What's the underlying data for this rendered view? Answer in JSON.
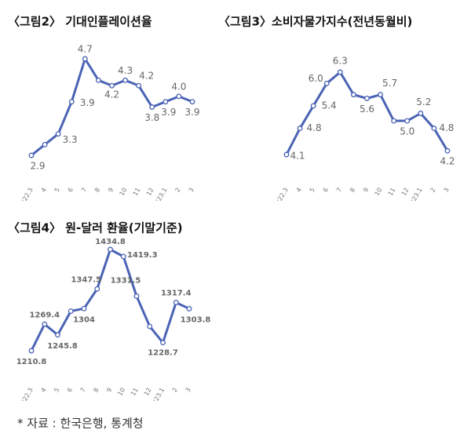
{
  "chart_data": [
    {
      "type": "line",
      "title": "〈그림2〉 기대인플레이션율",
      "categories": [
        "'22.3",
        "4",
        "5",
        "6",
        "7",
        "8",
        "9",
        "10",
        "11",
        "12",
        "'23.1",
        "2",
        "3"
      ],
      "values": [
        2.9,
        3.1,
        3.3,
        3.9,
        4.7,
        4.3,
        4.2,
        4.3,
        4.2,
        3.8,
        3.9,
        4.0,
        3.9
      ],
      "value_labels": [
        "2.9",
        null,
        "3.3",
        "3.9",
        "4.7",
        null,
        "4.2",
        "4.3",
        "4.2",
        "3.8",
        "3.9",
        "4.0",
        "3.9"
      ],
      "color": "#4a63b5"
    },
    {
      "type": "line",
      "title": "〈그림3〉소비자물가지수(전년동월비)",
      "categories": [
        "'22.3",
        "4",
        "5",
        "6",
        "7",
        "8",
        "9",
        "10",
        "11",
        "12",
        "'23.1",
        "2",
        "3"
      ],
      "values": [
        4.1,
        4.8,
        5.4,
        6.0,
        6.3,
        5.7,
        5.6,
        5.7,
        5.0,
        5.0,
        5.2,
        4.8,
        4.2
      ],
      "value_labels": [
        "4.1",
        "4.8",
        "5.4",
        "6.0",
        "6.3",
        null,
        "5.6",
        "5.7",
        null,
        "5.0",
        "5.2",
        "4.8",
        "4.2"
      ],
      "color": "#4a63b5"
    },
    {
      "type": "line",
      "title": "〈그림4〉 원-달러 환율(기말기준)",
      "categories": [
        "'22.3",
        "4",
        "5",
        "6",
        "7",
        "8",
        "9",
        "10",
        "11",
        "12",
        "'23.1",
        "2",
        "3"
      ],
      "values": [
        1210.8,
        1269.4,
        1245.8,
        1298.4,
        1304,
        1347.5,
        1434.8,
        1419.3,
        1331.5,
        1264.5,
        1228.7,
        1317.4,
        1303.8
      ],
      "value_labels": [
        "1210.8",
        "1269.4",
        "1245.8",
        null,
        "1304",
        "1347.5",
        "1434.8",
        "1419.3",
        "1331.5",
        null,
        "1228.7",
        "1317.4",
        "1303.8"
      ],
      "color": "#4a63b5"
    }
  ],
  "source": "* 자료 : 한국은행, 통계청"
}
